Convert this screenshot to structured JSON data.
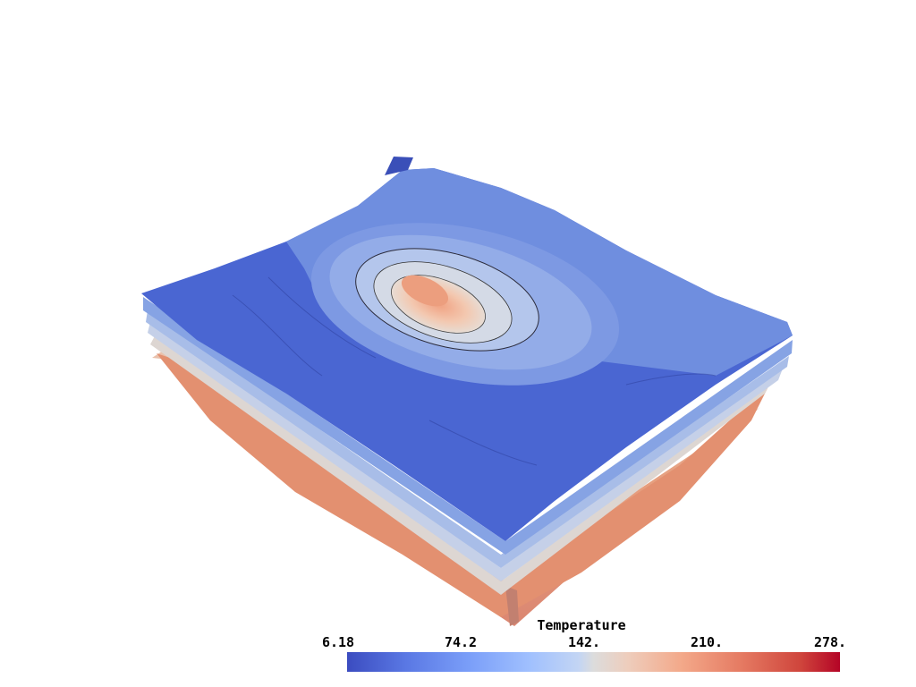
{
  "scalar_bar": {
    "title": "Temperature",
    "ticks": [
      "6.18",
      "74.2",
      "142.",
      "210.",
      "278."
    ],
    "range": [
      6.18,
      278
    ],
    "colormap": "coolwarm",
    "color_low": "#3b4cc0",
    "color_mid": "#dcdcdc",
    "color_high": "#b40426"
  },
  "scene": {
    "layer_colors": [
      "#3f5ad0",
      "#6d8ee8",
      "#9fb8f0",
      "#d8dde8",
      "#e9b89a",
      "#e08a6a"
    ]
  }
}
